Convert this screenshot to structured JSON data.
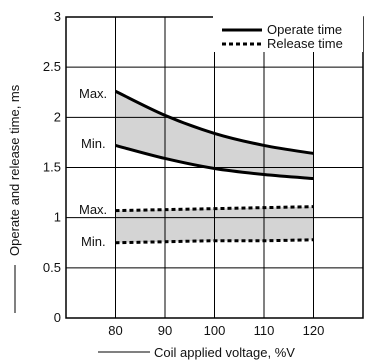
{
  "chart_data": {
    "type": "line",
    "title": "",
    "xlabel": "Coil applied voltage, %V",
    "ylabel": "Operate and release time, ms",
    "xlim": [
      70,
      130
    ],
    "ylim": [
      0,
      3
    ],
    "x_ticks": [
      80,
      90,
      100,
      110,
      120
    ],
    "y_ticks": [
      0,
      0.5,
      1,
      1.5,
      2,
      2.5,
      3
    ],
    "y_tick_labels": [
      "0",
      "0.5",
      "1",
      "1.5",
      "2",
      "2.5",
      "3"
    ],
    "grid": true,
    "legend_position": "top-right",
    "x": [
      80,
      90,
      100,
      110,
      120
    ],
    "series": [
      {
        "name": "Operate time",
        "style": "solid",
        "bound": "Max.",
        "values": [
          2.26,
          2.02,
          1.84,
          1.72,
          1.64
        ]
      },
      {
        "name": "Operate time",
        "style": "solid",
        "bound": "Min.",
        "values": [
          1.72,
          1.59,
          1.49,
          1.43,
          1.39
        ]
      },
      {
        "name": "Release time",
        "style": "dashed",
        "bound": "Max.",
        "values": [
          1.07,
          1.08,
          1.09,
          1.1,
          1.11
        ]
      },
      {
        "name": "Release time",
        "style": "dashed",
        "bound": "Min.",
        "values": [
          0.75,
          0.76,
          0.77,
          0.77,
          0.78
        ]
      }
    ],
    "legend": [
      {
        "label": "Operate time",
        "style": "solid"
      },
      {
        "label": "Release time",
        "style": "dashed"
      }
    ],
    "annotations": {
      "operate_max": "Max.",
      "operate_min": "Min.",
      "release_max": "Max.",
      "release_min": "Min."
    },
    "colors": {
      "line": "#000000",
      "band_fill": "#d4d4d4",
      "grid": "#000000"
    }
  }
}
